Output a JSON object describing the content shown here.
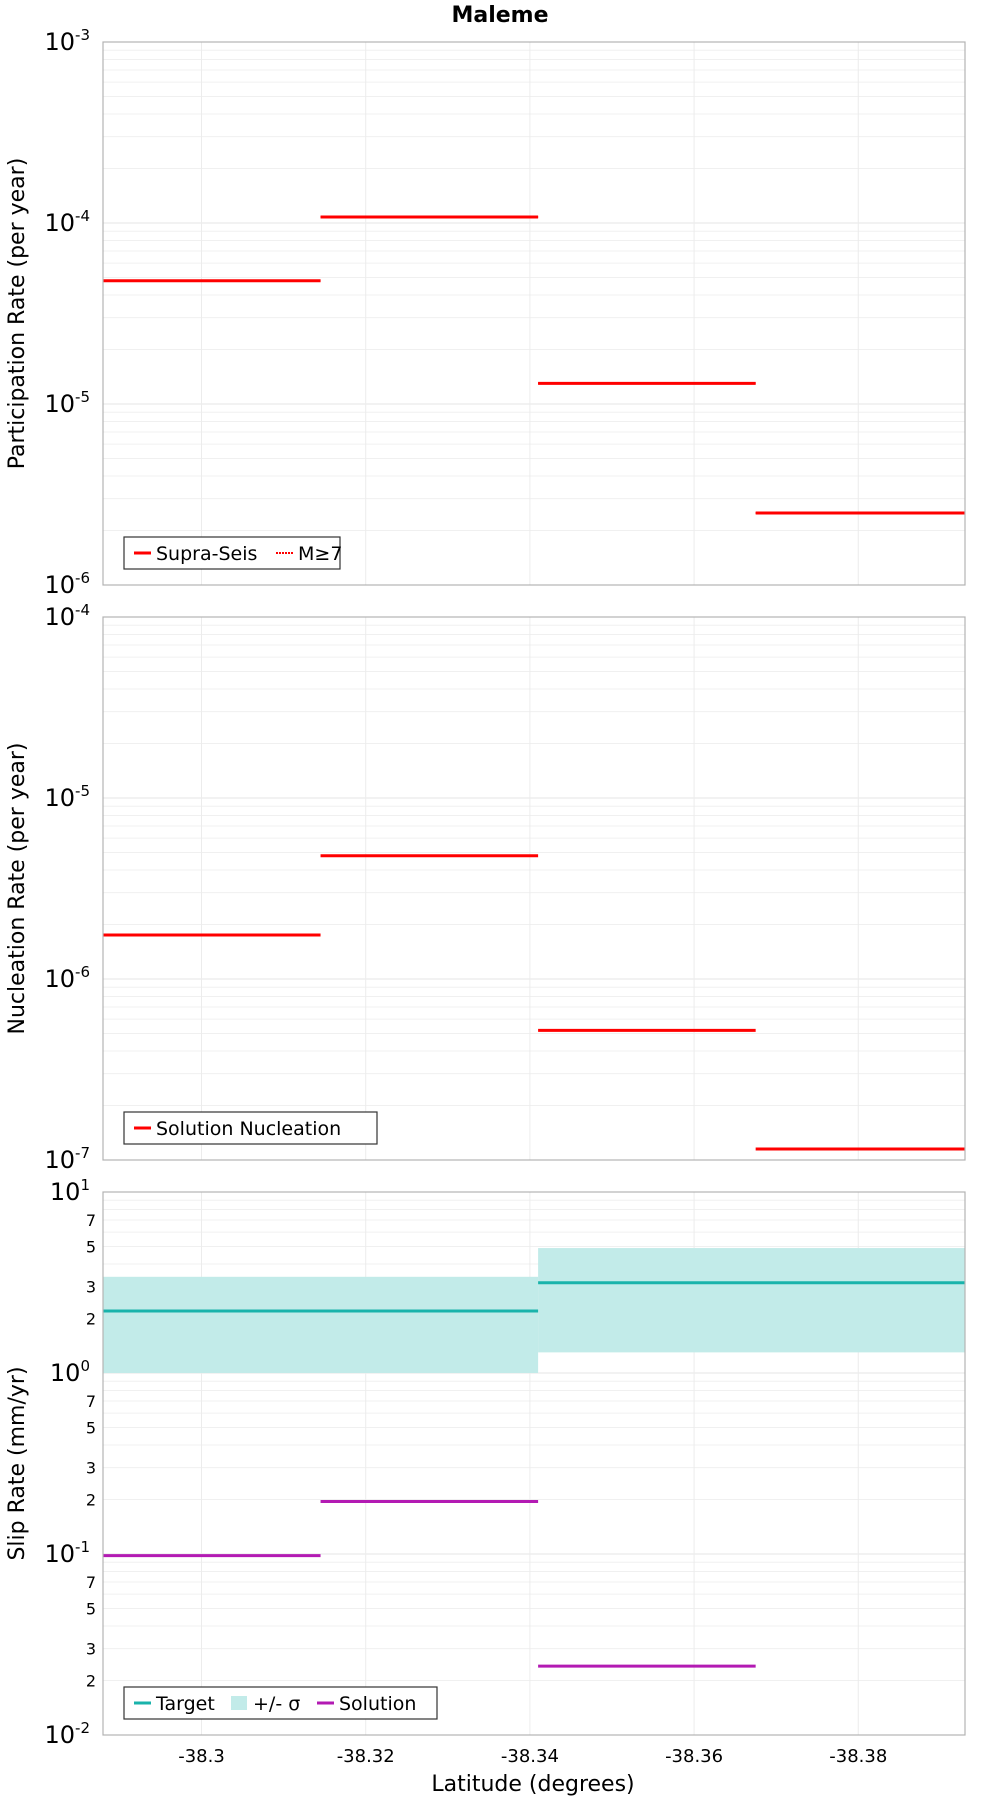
{
  "chart_data": {
    "title": "Maleme",
    "xlabel": "Latitude (degrees)",
    "x_range": [
      -38.288,
      -38.393
    ],
    "x_ticks": [
      -38.3,
      -38.32,
      -38.34,
      -38.36,
      -38.38
    ],
    "x_tick_labels": [
      "-38.3",
      "-38.32",
      "-38.34",
      "-38.36",
      "-38.38"
    ],
    "bins": [
      [
        -38.288,
        -38.3145
      ],
      [
        -38.3145,
        -38.341
      ],
      [
        -38.341,
        -38.3675
      ],
      [
        -38.3675,
        -38.393
      ]
    ],
    "panels": [
      {
        "id": "participation",
        "type": "line",
        "ylabel": "Participation Rate (per year)",
        "y_scale": "log",
        "ylim": [
          1e-06,
          0.001
        ],
        "decade_labels": [
          {
            "base": "10",
            "exp": "-6"
          },
          {
            "base": "10",
            "exp": "-5"
          },
          {
            "base": "10",
            "exp": "-4"
          },
          {
            "base": "10",
            "exp": "-3"
          }
        ],
        "minor_labels": [],
        "series": [
          {
            "name": "Supra-Seis",
            "color": "#ff0000",
            "style": "solid",
            "values": [
              4.8e-05,
              0.000108,
              1.3e-05,
              2.5e-06
            ]
          },
          {
            "name": "M≥7",
            "color": "#ff0000",
            "style": "dotted",
            "values": [
              4.8e-05,
              0.000108,
              1.3e-05,
              2.5e-06
            ]
          }
        ],
        "legend": {
          "position": "bottom-left",
          "items": [
            {
              "label": "Supra-Seis",
              "color": "#ff0000",
              "kind": "line"
            },
            {
              "label": "M≥7",
              "color": "#ff0000",
              "kind": "dotted"
            }
          ]
        }
      },
      {
        "id": "nucleation",
        "type": "line",
        "ylabel": "Nucleation Rate (per year)",
        "y_scale": "log",
        "ylim": [
          1e-07,
          0.0001
        ],
        "decade_labels": [
          {
            "base": "10",
            "exp": "-7"
          },
          {
            "base": "10",
            "exp": "-6"
          },
          {
            "base": "10",
            "exp": "-5"
          },
          {
            "base": "10",
            "exp": "-4"
          }
        ],
        "minor_labels": [],
        "series": [
          {
            "name": "Solution Nucleation",
            "color": "#ff0000",
            "style": "solid",
            "values": [
              1.75e-06,
              4.8e-06,
              5.2e-07,
              1.15e-07
            ]
          }
        ],
        "legend": {
          "position": "bottom-left",
          "items": [
            {
              "label": "Solution Nucleation",
              "color": "#ff0000",
              "kind": "line"
            }
          ]
        }
      },
      {
        "id": "slip",
        "type": "line",
        "ylabel": "Slip Rate (mm/yr)",
        "y_scale": "log",
        "ylim": [
          0.01,
          10
        ],
        "decade_labels": [
          {
            "base": "10",
            "exp": "-2"
          },
          {
            "base": "10",
            "exp": "-1"
          },
          {
            "base": "10",
            "exp": "0"
          },
          {
            "base": "10",
            "exp": "1"
          }
        ],
        "minor_labels": [
          {
            "value": 0.02,
            "label": "2"
          },
          {
            "value": 0.03,
            "label": "3"
          },
          {
            "value": 0.05,
            "label": "5"
          },
          {
            "value": 0.07,
            "label": "7"
          },
          {
            "value": 0.2,
            "label": "2"
          },
          {
            "value": 0.3,
            "label": "3"
          },
          {
            "value": 0.5,
            "label": "5"
          },
          {
            "value": 0.7,
            "label": "7"
          },
          {
            "value": 2,
            "label": "2"
          },
          {
            "value": 3,
            "label": "3"
          },
          {
            "value": 5,
            "label": "5"
          },
          {
            "value": 7,
            "label": "7"
          }
        ],
        "band": {
          "name": "+/- σ",
          "color": "#c2ebe9",
          "segments": [
            {
              "x0": -38.288,
              "x1": -38.341,
              "low": 1.0,
              "high": 3.4
            },
            {
              "x0": -38.341,
              "x1": -38.393,
              "low": 1.3,
              "high": 4.9
            }
          ]
        },
        "series": [
          {
            "name": "Target",
            "color": "#19b3ab",
            "style": "solid",
            "segments": [
              {
                "x0": -38.288,
                "x1": -38.341,
                "y": 2.2
              },
              {
                "x0": -38.341,
                "x1": -38.393,
                "y": 3.15
              }
            ]
          },
          {
            "name": "Solution",
            "color": "#b31ab3",
            "style": "solid",
            "values": [
              0.098,
              0.195,
              0.024,
              null
            ]
          }
        ],
        "legend": {
          "position": "bottom-left",
          "items": [
            {
              "label": "Target",
              "color": "#19b3ab",
              "kind": "line"
            },
            {
              "label": "+/- σ",
              "color": "#c2ebe9",
              "kind": "block"
            },
            {
              "label": "Solution",
              "color": "#b31ab3",
              "kind": "line"
            }
          ]
        }
      }
    ]
  }
}
